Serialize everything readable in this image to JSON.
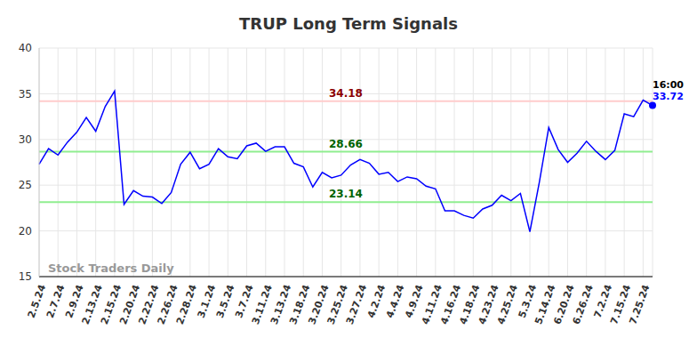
{
  "chart_data": {
    "type": "line",
    "title": "TRUP Long Term Signals",
    "watermark": "Stock Traders Daily",
    "categories": [
      "2.5.24",
      null,
      "2.7.24",
      null,
      "2.9.24",
      null,
      "2.13.24",
      null,
      "2.15.24",
      null,
      "2.20.24",
      null,
      "2.22.24",
      null,
      "2.26.24",
      null,
      "2.28.24",
      null,
      "3.1.24",
      null,
      "3.5.24",
      null,
      "3.7.24",
      null,
      "3.11.24",
      null,
      "3.13.24",
      null,
      "3.18.24",
      null,
      "3.20.24",
      null,
      "3.25.24",
      null,
      "3.27.24",
      null,
      "4.2.24",
      null,
      "4.4.24",
      null,
      "4.9.24",
      null,
      "4.11.24",
      null,
      "4.16.24",
      null,
      "4.18.24",
      null,
      "4.23.24",
      null,
      "4.25.24",
      null,
      "5.3.24",
      null,
      "5.14.24",
      null,
      "6.20.24",
      null,
      "6.26.24",
      null,
      "7.2.24",
      null,
      "7.15.24",
      null,
      "7.25.24",
      null
    ],
    "values": [
      27.3,
      29.0,
      28.3,
      29.7,
      30.8,
      32.4,
      30.9,
      33.6,
      35.3,
      22.9,
      24.4,
      23.8,
      23.7,
      23.0,
      24.2,
      27.3,
      28.6,
      26.8,
      27.3,
      29.0,
      28.1,
      27.9,
      29.3,
      29.6,
      28.7,
      29.2,
      29.2,
      27.4,
      27.0,
      24.8,
      26.4,
      25.8,
      26.1,
      27.2,
      27.8,
      27.4,
      26.2,
      26.4,
      25.4,
      25.9,
      25.7,
      24.9,
      24.6,
      22.2,
      22.2,
      21.7,
      21.4,
      22.4,
      22.8,
      23.9,
      23.3,
      24.1,
      19.9,
      25.3,
      31.3,
      28.9,
      27.5,
      28.5,
      29.8,
      28.7,
      27.8,
      28.8,
      32.8,
      32.5,
      34.3,
      33.72
    ],
    "color": "#0000ff",
    "ylim": [
      15,
      40
    ],
    "yticks": [
      15,
      20,
      25,
      30,
      35,
      40
    ],
    "grid": true,
    "reference_lines": [
      {
        "value": 34.18,
        "color": "#ffcccc",
        "label_color": "#8b0000"
      },
      {
        "value": 28.66,
        "color": "#90ee90",
        "label_color": "#006400"
      },
      {
        "value": 23.14,
        "color": "#90ee90",
        "label_color": "#006400"
      }
    ],
    "end_label": {
      "time": "16:00",
      "value": 33.72,
      "color": "#0000ff"
    }
  }
}
